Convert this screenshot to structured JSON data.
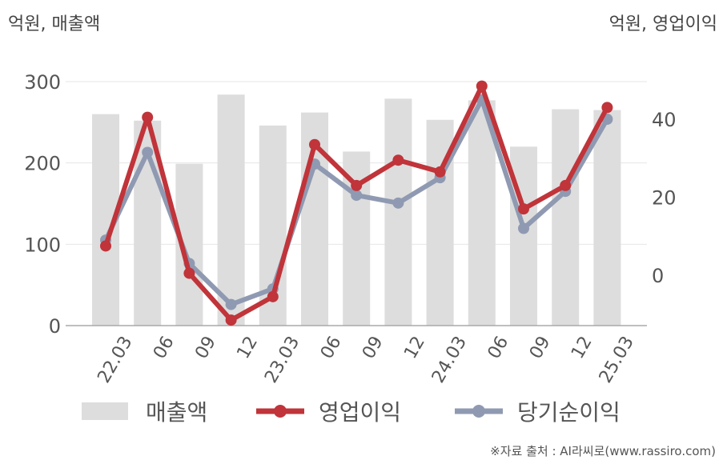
{
  "chart_data": {
    "type": "bar",
    "left_axis_label": "억원, 매출액",
    "right_axis_label": "억원, 영업이익",
    "categories": [
      "22.03",
      "06",
      "09",
      "12",
      "23.03",
      "06",
      "09",
      "12",
      "24.03",
      "06",
      "09",
      "12",
      "25.03"
    ],
    "series": [
      {
        "name": "매출액",
        "type": "bar",
        "axis": "left",
        "color": "#dddddd",
        "values": [
          260,
          252,
          199,
          284,
          246,
          262,
          214,
          279,
          253,
          277,
          220,
          266,
          265
        ]
      },
      {
        "name": "영업이익",
        "type": "line",
        "axis": "right",
        "color": "#c0343a",
        "values": [
          7.5,
          40.5,
          0.5,
          -11.5,
          -5.5,
          33.5,
          23,
          29.5,
          26.5,
          48.5,
          17,
          23,
          43
        ]
      },
      {
        "name": "당기순이익",
        "type": "line",
        "axis": "right",
        "color": "#8f9ab2",
        "values": [
          9,
          31.5,
          3,
          -7.5,
          -3.5,
          28.5,
          20.5,
          18.5,
          25,
          45,
          12,
          21.5,
          40
        ]
      }
    ],
    "left_axis": {
      "ylim": [
        0,
        300
      ],
      "ticks": [
        0,
        100,
        200,
        300
      ]
    },
    "right_axis": {
      "ticks": [
        0,
        20,
        40
      ]
    },
    "grid": true,
    "legend_position": "bottom"
  },
  "source": "※자료 출처 : AI라씨로(www.rassiro.com)"
}
